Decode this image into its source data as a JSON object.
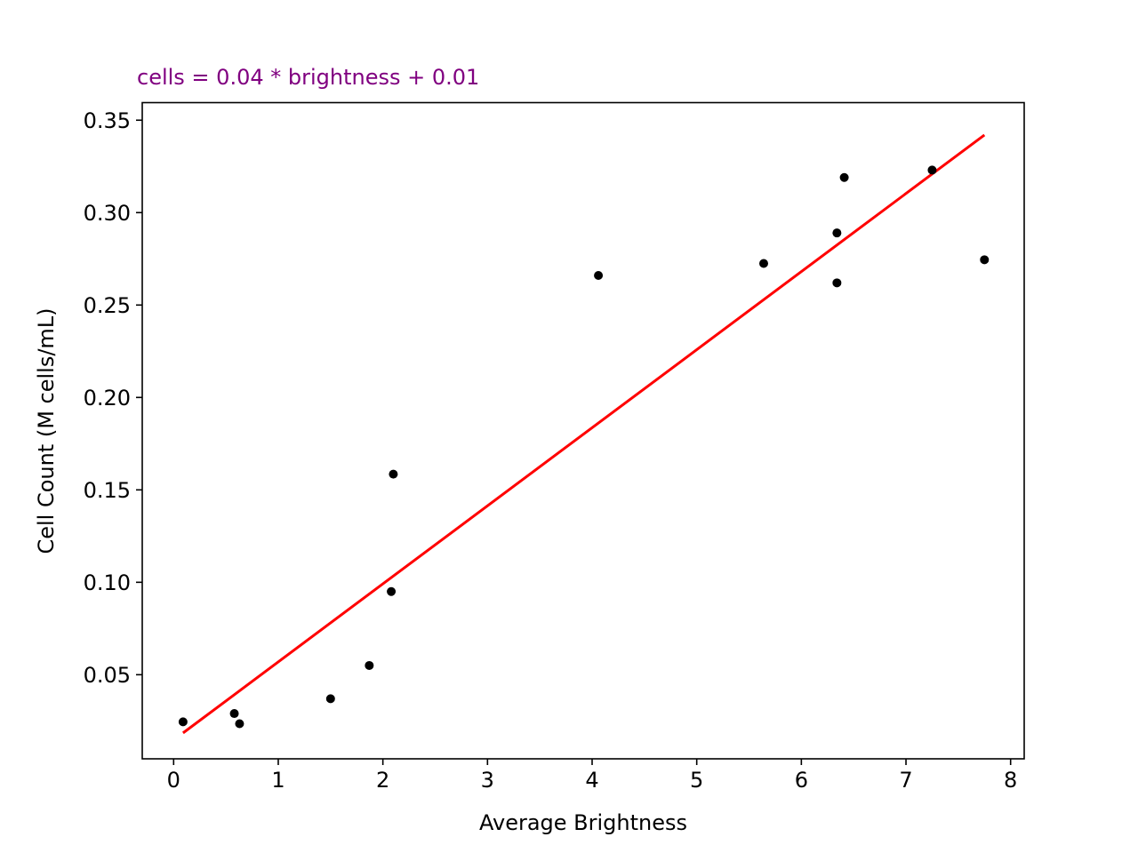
{
  "chart_data": {
    "type": "scatter",
    "title": "cells = 0.04 * brightness + 0.01",
    "title_color": "#800080",
    "xlabel": "Average Brightness",
    "ylabel": "Cell Count (M cells/mL)",
    "xlim": [
      -0.3,
      8.13
    ],
    "ylim": [
      0.0045,
      0.3595
    ],
    "xticks": [
      0,
      1,
      2,
      3,
      4,
      5,
      6,
      7,
      8
    ],
    "xtick_labels": [
      "0",
      "1",
      "2",
      "3",
      "4",
      "5",
      "6",
      "7",
      "8"
    ],
    "yticks": [
      0.05,
      0.1,
      0.15,
      0.2,
      0.25,
      0.3,
      0.35
    ],
    "ytick_labels": [
      "0.05",
      "0.10",
      "0.15",
      "0.20",
      "0.25",
      "0.30",
      "0.35"
    ],
    "grid": false,
    "series": [
      {
        "type": "scatter",
        "color": "#000000",
        "points": [
          {
            "x": 0.09,
            "y": 0.0245
          },
          {
            "x": 0.58,
            "y": 0.029
          },
          {
            "x": 0.63,
            "y": 0.0235
          },
          {
            "x": 1.5,
            "y": 0.037
          },
          {
            "x": 1.87,
            "y": 0.055
          },
          {
            "x": 2.08,
            "y": 0.095
          },
          {
            "x": 2.1,
            "y": 0.1585
          },
          {
            "x": 4.06,
            "y": 0.266
          },
          {
            "x": 5.64,
            "y": 0.2725
          },
          {
            "x": 6.34,
            "y": 0.262
          },
          {
            "x": 6.34,
            "y": 0.289
          },
          {
            "x": 6.41,
            "y": 0.319
          },
          {
            "x": 7.25,
            "y": 0.323
          },
          {
            "x": 7.75,
            "y": 0.2745
          }
        ]
      },
      {
        "type": "line",
        "color": "#ff0000",
        "points": [
          {
            "x": 0.09,
            "y": 0.0185
          },
          {
            "x": 7.75,
            "y": 0.342
          }
        ]
      }
    ]
  }
}
